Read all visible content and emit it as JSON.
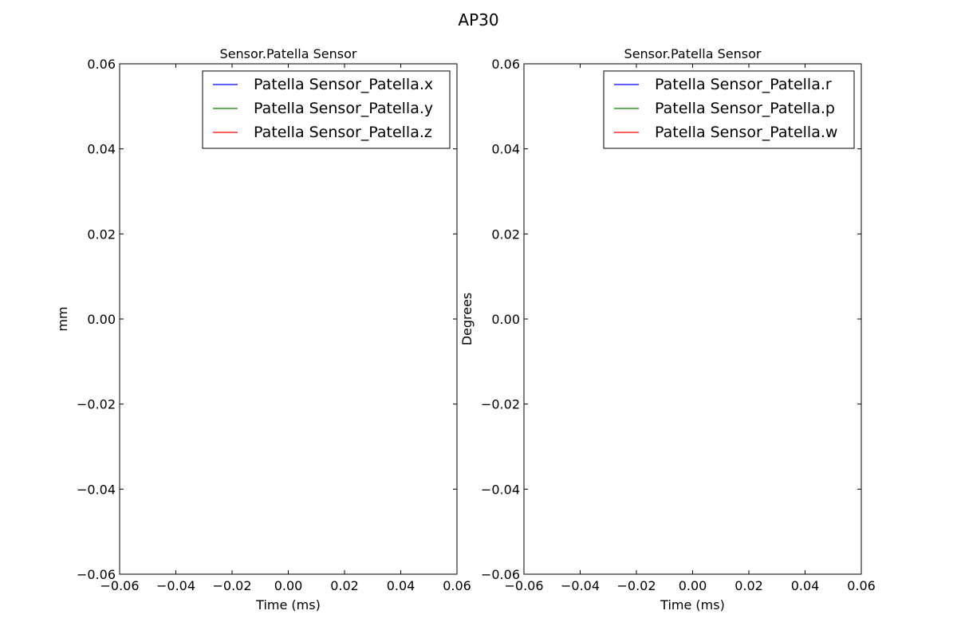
{
  "figure": {
    "title": "AP30"
  },
  "chart_data": [
    {
      "type": "line",
      "title": "Sensor.Patella Sensor",
      "xlabel": "Time (ms)",
      "ylabel": "mm",
      "xlim": [
        -0.06,
        0.06
      ],
      "ylim": [
        -0.06,
        0.06
      ],
      "xticks": [
        "−0.06",
        "−0.04",
        "−0.02",
        "0.00",
        "0.02",
        "0.04",
        "0.06"
      ],
      "yticks": [
        "−0.06",
        "−0.04",
        "−0.02",
        "0.00",
        "0.02",
        "0.04",
        "0.06"
      ],
      "grid": false,
      "legend_position": "upper right",
      "series": [
        {
          "name": "Patella Sensor_Patella.x",
          "color": "#0000ff",
          "x": [],
          "y": []
        },
        {
          "name": "Patella Sensor_Patella.y",
          "color": "#008000",
          "x": [],
          "y": []
        },
        {
          "name": "Patella Sensor_Patella.z",
          "color": "#ff0000",
          "x": [],
          "y": []
        }
      ]
    },
    {
      "type": "line",
      "title": "Sensor.Patella Sensor",
      "xlabel": "Time (ms)",
      "ylabel": "Degrees",
      "xlim": [
        -0.06,
        0.06
      ],
      "ylim": [
        -0.06,
        0.06
      ],
      "xticks": [
        "−0.06",
        "−0.04",
        "−0.02",
        "0.00",
        "0.02",
        "0.04",
        "0.06"
      ],
      "yticks": [
        "−0.06",
        "−0.04",
        "−0.02",
        "0.00",
        "0.02",
        "0.04",
        "0.06"
      ],
      "grid": false,
      "legend_position": "upper right",
      "series": [
        {
          "name": "Patella Sensor_Patella.r",
          "color": "#0000ff",
          "x": [],
          "y": []
        },
        {
          "name": "Patella Sensor_Patella.p",
          "color": "#008000",
          "x": [],
          "y": []
        },
        {
          "name": "Patella Sensor_Patella.w",
          "color": "#ff0000",
          "x": [],
          "y": []
        }
      ]
    }
  ]
}
